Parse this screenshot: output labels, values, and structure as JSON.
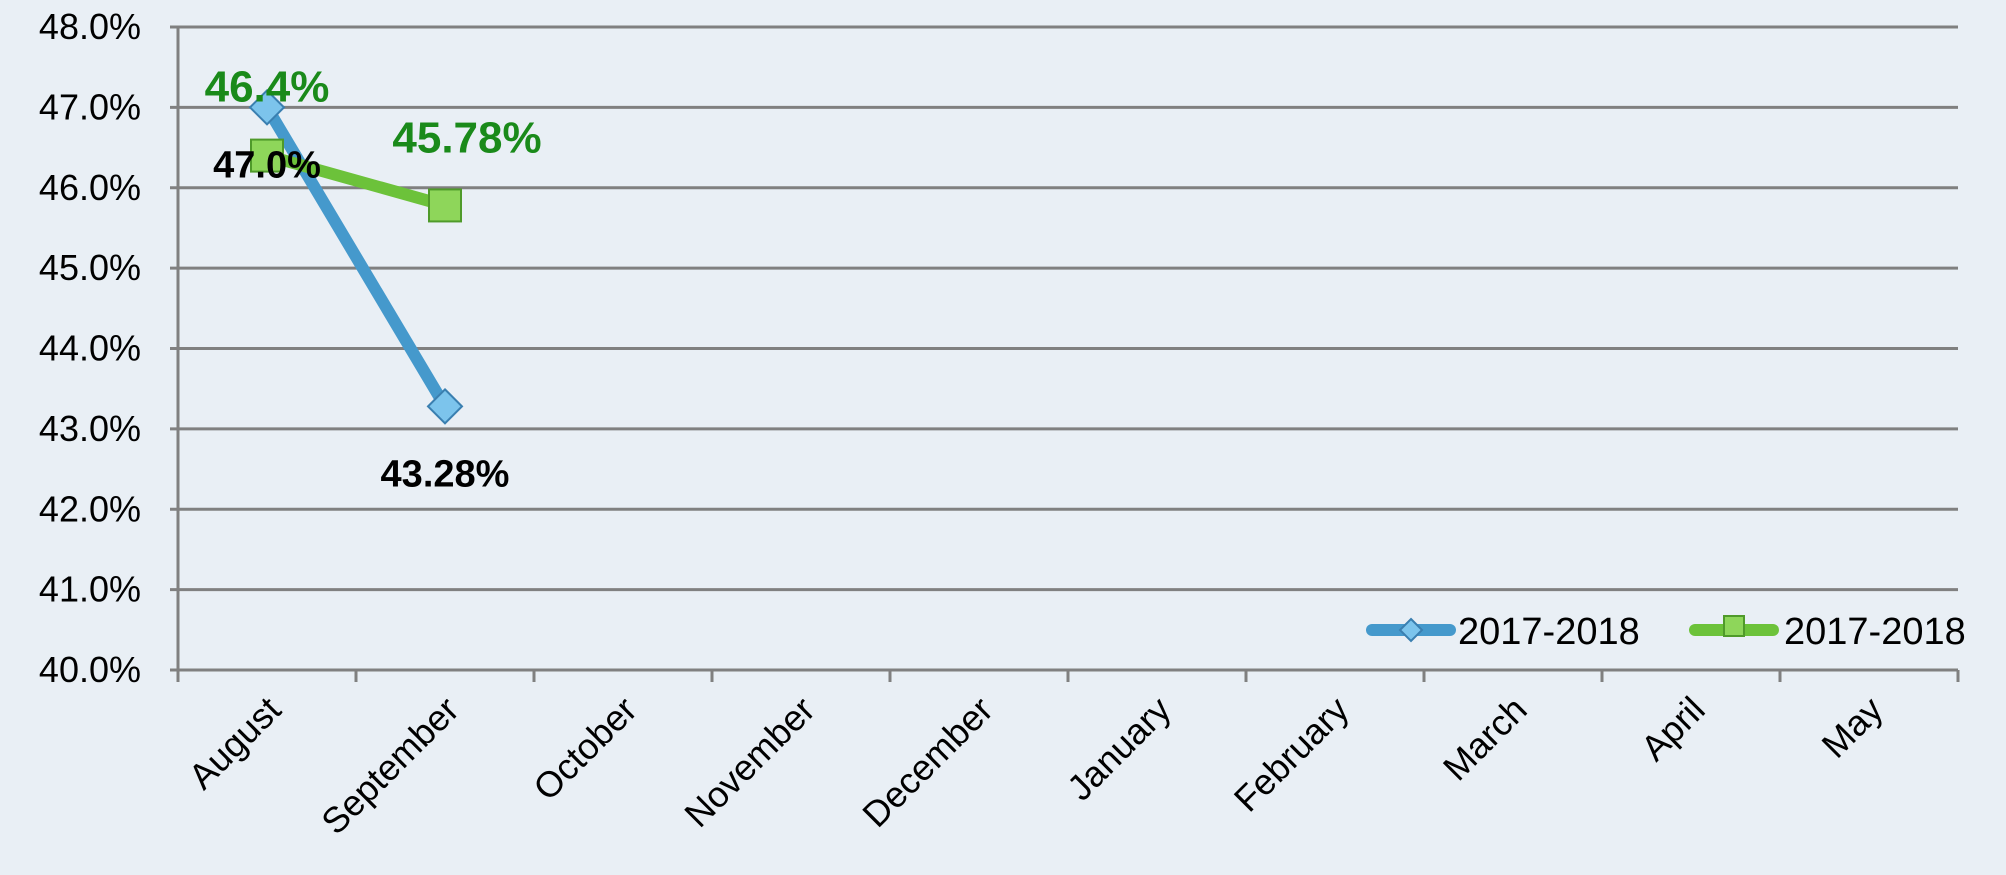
{
  "chart_data": {
    "type": "line",
    "categories": [
      "August",
      "September",
      "October",
      "November",
      "December",
      "January",
      "February",
      "March",
      "April",
      "May"
    ],
    "series": [
      {
        "name": "2017-2018",
        "values": [
          47.0,
          43.28,
          null,
          null,
          null,
          null,
          null,
          null,
          null,
          null
        ],
        "data_labels": [
          "47.0%",
          "43.28%"
        ],
        "color": "#4599cc",
        "marker": "diamond",
        "marker_color": "#7cc4ec",
        "label_color": "#000000"
      },
      {
        "name": "2017-2018",
        "values": [
          46.4,
          45.78,
          null,
          null,
          null,
          null,
          null,
          null,
          null,
          null
        ],
        "data_labels": [
          "46.4%",
          "45.78%"
        ],
        "color": "#6cc23a",
        "marker": "square",
        "marker_color": "#8ed65a",
        "label_color": "#1a8a1a"
      }
    ],
    "y_ticks": [
      "40.0%",
      "41.0%",
      "42.0%",
      "43.0%",
      "44.0%",
      "45.0%",
      "46.0%",
      "47.0%",
      "48.0%"
    ],
    "ylim": [
      40,
      48
    ],
    "ytick_step": 1,
    "title": "",
    "xlabel": "",
    "ylabel": "",
    "grid": true,
    "legend": "bottom-right",
    "background": "#e9eff5",
    "grid_color": "#808080"
  }
}
